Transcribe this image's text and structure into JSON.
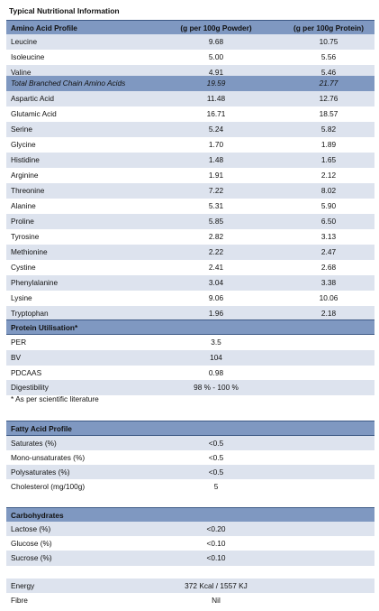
{
  "title": "Typical Nutritional Information",
  "amino": {
    "header": [
      "Amino Acid Profile",
      "(g per 100g Powder)",
      "(g per 100g Protein)"
    ],
    "rows": [
      [
        "Leucine",
        "9.68",
        "10.75"
      ],
      [
        "Isoleucine",
        "5.00",
        "5.56"
      ],
      [
        "Valine",
        "4.91",
        "5.46"
      ],
      [
        "Total Branched Chain Amino Acids",
        "19.59",
        "21.77"
      ],
      [
        "Aspartic Acid",
        "11.48",
        "12.76"
      ],
      [
        "Glutamic Acid",
        "16.71",
        "18.57"
      ],
      [
        "Serine",
        "5.24",
        "5.82"
      ],
      [
        "Glycine",
        "1.70",
        "1.89"
      ],
      [
        "Histidine",
        "1.48",
        "1.65"
      ],
      [
        "Arginine",
        "1.91",
        "2.12"
      ],
      [
        "Threonine",
        "7.22",
        "8.02"
      ],
      [
        "Alanine",
        "5.31",
        "5.90"
      ],
      [
        "Proline",
        "5.85",
        "6.50"
      ],
      [
        "Tyrosine",
        "2.82",
        "3.13"
      ],
      [
        "Methionine",
        "2.22",
        "2.47"
      ],
      [
        "Cystine",
        "2.41",
        "2.68"
      ],
      [
        "Phenylalanine",
        "3.04",
        "3.38"
      ],
      [
        "Lysine",
        "9.06",
        "10.06"
      ],
      [
        "Tryptophan",
        "1.96",
        "2.18"
      ]
    ]
  },
  "protein": {
    "header": "Protein Utilisation*",
    "rows": [
      [
        "PER",
        "3.5"
      ],
      [
        "BV",
        "104"
      ],
      [
        "PDCAAS",
        "0.98"
      ],
      [
        "Digestibility",
        "98 % - 100 %"
      ]
    ],
    "note": "* As per scientific literature"
  },
  "fatty": {
    "header": "Fatty Acid Profile",
    "rows": [
      [
        "Saturates (%)",
        "<0.5"
      ],
      [
        "Mono-unsaturates (%)",
        "<0.5"
      ],
      [
        "Polysaturates (%)",
        "<0.5"
      ],
      [
        "Cholesterol (mg/100g)",
        "5"
      ]
    ]
  },
  "carbs": {
    "header": "Carbohydrates",
    "rows": [
      [
        "Lactose (%)",
        "<0.20"
      ],
      [
        "Glucose (%)",
        "<0.10"
      ],
      [
        "Sucrose (%)",
        "<0.10"
      ]
    ]
  },
  "energy": {
    "rows": [
      [
        "Energy",
        "372 Kcal / 1557 KJ"
      ],
      [
        "Fibre",
        "Nil"
      ]
    ]
  }
}
